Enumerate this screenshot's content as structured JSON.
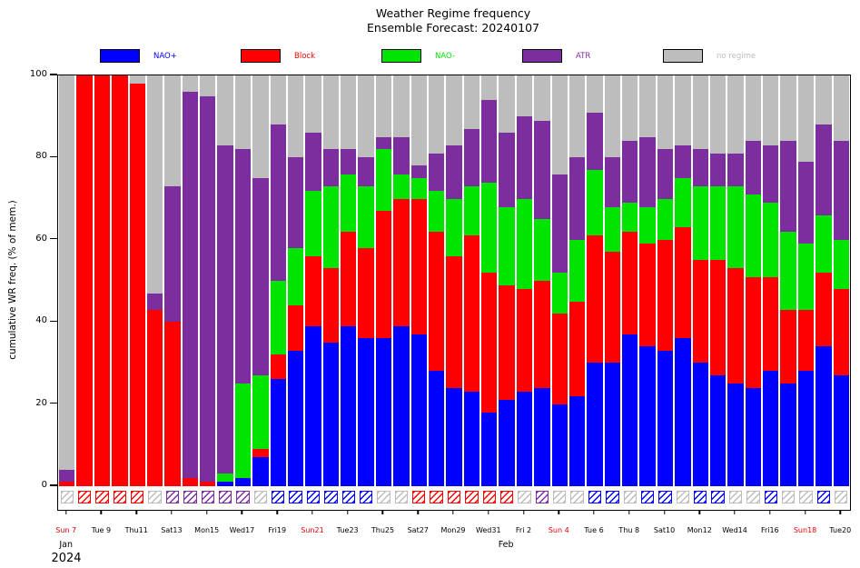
{
  "chart_data": {
    "type": "bar",
    "stacked": true,
    "title": "Weather Regime frequency",
    "subtitle": "Ensemble Forecast: 20240107",
    "ylabel": "cumulative WR freq. (% of mem.)",
    "ylim": [
      0,
      100
    ],
    "yticks": [
      0,
      20,
      40,
      60,
      80,
      100
    ],
    "legend_position": "top",
    "grid": false,
    "n_days": 45,
    "sunday_label_color": "#e00000",
    "x_year_label": "2024",
    "x_month_labels": [
      {
        "label": "Jan",
        "day_index": 0
      },
      {
        "label": "Feb",
        "day_index": 25
      }
    ],
    "x_tick_labels": [
      {
        "label": "Sun 7",
        "sunday": true
      },
      {
        "label": "Tue 9",
        "sunday": false
      },
      {
        "label": "Thu11",
        "sunday": false
      },
      {
        "label": "Sat13",
        "sunday": false
      },
      {
        "label": "Mon15",
        "sunday": false
      },
      {
        "label": "Wed17",
        "sunday": false
      },
      {
        "label": "Fri19",
        "sunday": false
      },
      {
        "label": "Sun21",
        "sunday": true
      },
      {
        "label": "Tue23",
        "sunday": false
      },
      {
        "label": "Thu25",
        "sunday": false
      },
      {
        "label": "Sat27",
        "sunday": false
      },
      {
        "label": "Mon29",
        "sunday": false
      },
      {
        "label": "Wed31",
        "sunday": false
      },
      {
        "label": "Fri 2",
        "sunday": false
      },
      {
        "label": "Sun 4",
        "sunday": true
      },
      {
        "label": "Tue 6",
        "sunday": false
      },
      {
        "label": "Thu 8",
        "sunday": false
      },
      {
        "label": "Sat10",
        "sunday": false
      },
      {
        "label": "Mon12",
        "sunday": false
      },
      {
        "label": "Wed14",
        "sunday": false
      },
      {
        "label": "Fri16",
        "sunday": false
      },
      {
        "label": "Sun18",
        "sunday": true
      },
      {
        "label": "Tue20",
        "sunday": false
      }
    ],
    "series": [
      {
        "name": "NAO+",
        "color": "#0000ff",
        "values": [
          0,
          0,
          0,
          0,
          0,
          0,
          0,
          0,
          0,
          1,
          2,
          7,
          26,
          33,
          39,
          35,
          39,
          36,
          36,
          39,
          37,
          28,
          24,
          23,
          18,
          21,
          23,
          24,
          20,
          22,
          30,
          30,
          37,
          34,
          33,
          36,
          30,
          27,
          25,
          24,
          28,
          25,
          28,
          34,
          27
        ]
      },
      {
        "name": "Block",
        "color": "#ff0000",
        "values": [
          1,
          100,
          100,
          100,
          98,
          43,
          40,
          2,
          1,
          0,
          0,
          2,
          6,
          11,
          17,
          18,
          23,
          22,
          31,
          31,
          33,
          34,
          32,
          38,
          34,
          28,
          25,
          26,
          22,
          23,
          31,
          27,
          25,
          25,
          27,
          27,
          25,
          28,
          28,
          27,
          23,
          18,
          15,
          18,
          21
        ]
      },
      {
        "name": "NAO-",
        "color": "#00e400",
        "values": [
          0,
          0,
          0,
          0,
          0,
          0,
          0,
          0,
          0,
          2,
          23,
          18,
          18,
          14,
          16,
          20,
          14,
          15,
          15,
          6,
          5,
          10,
          14,
          12,
          22,
          19,
          22,
          15,
          10,
          15,
          16,
          11,
          7,
          9,
          10,
          12,
          18,
          18,
          20,
          20,
          18,
          19,
          16,
          14,
          12
        ]
      },
      {
        "name": "ATR",
        "color": "#7d2e9e",
        "values": [
          3,
          0,
          0,
          0,
          0,
          4,
          33,
          94,
          94,
          80,
          57,
          48,
          38,
          22,
          14,
          9,
          6,
          7,
          3,
          9,
          3,
          9,
          13,
          14,
          20,
          18,
          20,
          24,
          24,
          20,
          14,
          12,
          15,
          17,
          12,
          8,
          9,
          8,
          8,
          13,
          14,
          22,
          20,
          22,
          24
        ]
      },
      {
        "name": "no regime",
        "color": "#bdbdbd",
        "values": [
          96,
          0,
          0,
          0,
          2,
          53,
          27,
          4,
          5,
          17,
          18,
          25,
          12,
          20,
          14,
          18,
          18,
          20,
          15,
          15,
          22,
          19,
          17,
          13,
          6,
          14,
          10,
          11,
          24,
          20,
          9,
          20,
          16,
          15,
          18,
          17,
          18,
          19,
          19,
          16,
          17,
          16,
          21,
          12,
          16
        ]
      }
    ],
    "dominant_regime_per_day": [
      "no regime",
      "Block",
      "Block",
      "Block",
      "Block",
      "no regime",
      "ATR",
      "ATR",
      "ATR",
      "ATR",
      "ATR",
      "no regime",
      "NAO+",
      "NAO+",
      "NAO+",
      "NAO+",
      "NAO+",
      "NAO+",
      "no regime",
      "no regime",
      "Block",
      "Block",
      "Block",
      "Block",
      "Block",
      "Block",
      "no regime",
      "ATR",
      "no regime",
      "no regime",
      "NAO+",
      "NAO+",
      "no regime",
      "NAO+",
      "NAO+",
      "no regime",
      "NAO+",
      "NAO+",
      "no regime",
      "no regime",
      "NAO+",
      "no regime",
      "no regime",
      "NAO+",
      "no regime"
    ]
  }
}
